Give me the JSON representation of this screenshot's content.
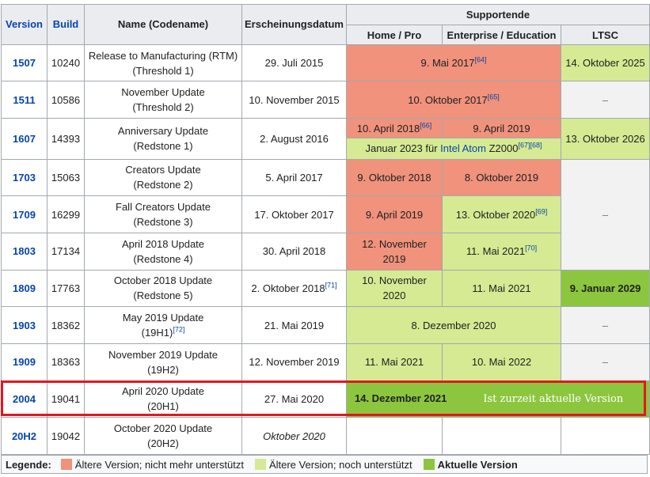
{
  "headers": {
    "version": "Version",
    "build": "Build",
    "name": "Name (Codename)",
    "date": "Erscheinungsdatum",
    "support": "Supportende",
    "home": "Home / Pro",
    "enterprise": "Enterprise / Education",
    "ltsc": "LTSC"
  },
  "rows": [
    {
      "version": "1507",
      "build": "10240",
      "name1": "Release to Manufacturing (RTM)",
      "name2": "(Threshold 1)",
      "date": "29. Juli 2015",
      "home_ent": "9. Mai 2017",
      "home_ent_ref": "[64]",
      "ltsc": "14. Oktober 2025"
    },
    {
      "version": "1511",
      "build": "10586",
      "name1": "November Update",
      "name2": "(Threshold 2)",
      "date": "10. November 2015",
      "home_ent": "10. Oktober 2017",
      "home_ent_ref": "[65]",
      "ltsc": "–"
    },
    {
      "version": "1607",
      "build": "14393",
      "name1": "Anniversary Update",
      "name2": "(Redstone 1)",
      "date": "2. August 2016",
      "home": "10. April 2018",
      "home_ref": "[66]",
      "ent": "9. April 2019",
      "atom_pre": "Januar 2023 für",
      "atom_link": "Intel Atom",
      "atom_post": "Z2000",
      "atom_ref": "[67][68]",
      "ltsc": "13. Oktober 2026"
    },
    {
      "version": "1703",
      "build": "15063",
      "name1": "Creators Update",
      "name2": "(Redstone 2)",
      "date": "5. April 2017",
      "home": "9. Oktober 2018",
      "ent": "8. Oktober 2019",
      "ltsc": "–"
    },
    {
      "version": "1709",
      "build": "16299",
      "name1": "Fall Creators Update",
      "name2": "(Redstone 3)",
      "date": "17. Oktober 2017",
      "home": "9. April 2019",
      "ent": "13. Oktober 2020",
      "ent_ref": "[69]"
    },
    {
      "version": "1803",
      "build": "17134",
      "name1": "April 2018 Update",
      "name2": "(Redstone 4)",
      "date": "30. April 2018",
      "home": "12. November 2019",
      "ent": "11. Mai 2021",
      "ent_ref": "[70]"
    },
    {
      "version": "1809",
      "build": "17763",
      "name1": "October 2018 Update",
      "name2": "(Redstone 5)",
      "date": "2. Oktober 2018",
      "date_ref": "[71]",
      "home": "10. November 2020",
      "ent": "11. Mai 2021",
      "ltsc": "9. Januar 2029"
    },
    {
      "version": "1903",
      "build": "18362",
      "name1": "May 2019 Update",
      "name2": "(19H1)",
      "name2_ref": "[72]",
      "date": "21. Mai 2019",
      "home_ent": "8. Dezember 2020",
      "ltsc": "–"
    },
    {
      "version": "1909",
      "build": "18363",
      "name1": "November 2019 Update",
      "name2": "(19H2)",
      "date": "12. November 2019",
      "home": "11. Mai 2021",
      "ent": "10. Mai 2022",
      "ltsc": "–"
    },
    {
      "version": "2004",
      "build": "19041",
      "name1": "April 2020 Update",
      "name2": "(20H1)",
      "date": "27. Mai 2020",
      "home_ent": "14. Dezember 2021",
      "note": "Ist zurzeit aktuelle Version"
    },
    {
      "version": "20H2",
      "build": "19042",
      "name1": "October 2020 Update",
      "name2": "(20H2)",
      "date": "Oktober 2020"
    }
  ],
  "legend": {
    "title": "Legende:",
    "old": "Ältere Version; nicht mehr unterstützt",
    "supported": "Ältere Version; noch unterstützt",
    "current": "Aktuelle Version"
  },
  "colors": {
    "old": "#f0927c",
    "supported": "#d5ea93",
    "current": "#8cc63f",
    "highlight": "#e3171e",
    "link": "#0645ad"
  }
}
